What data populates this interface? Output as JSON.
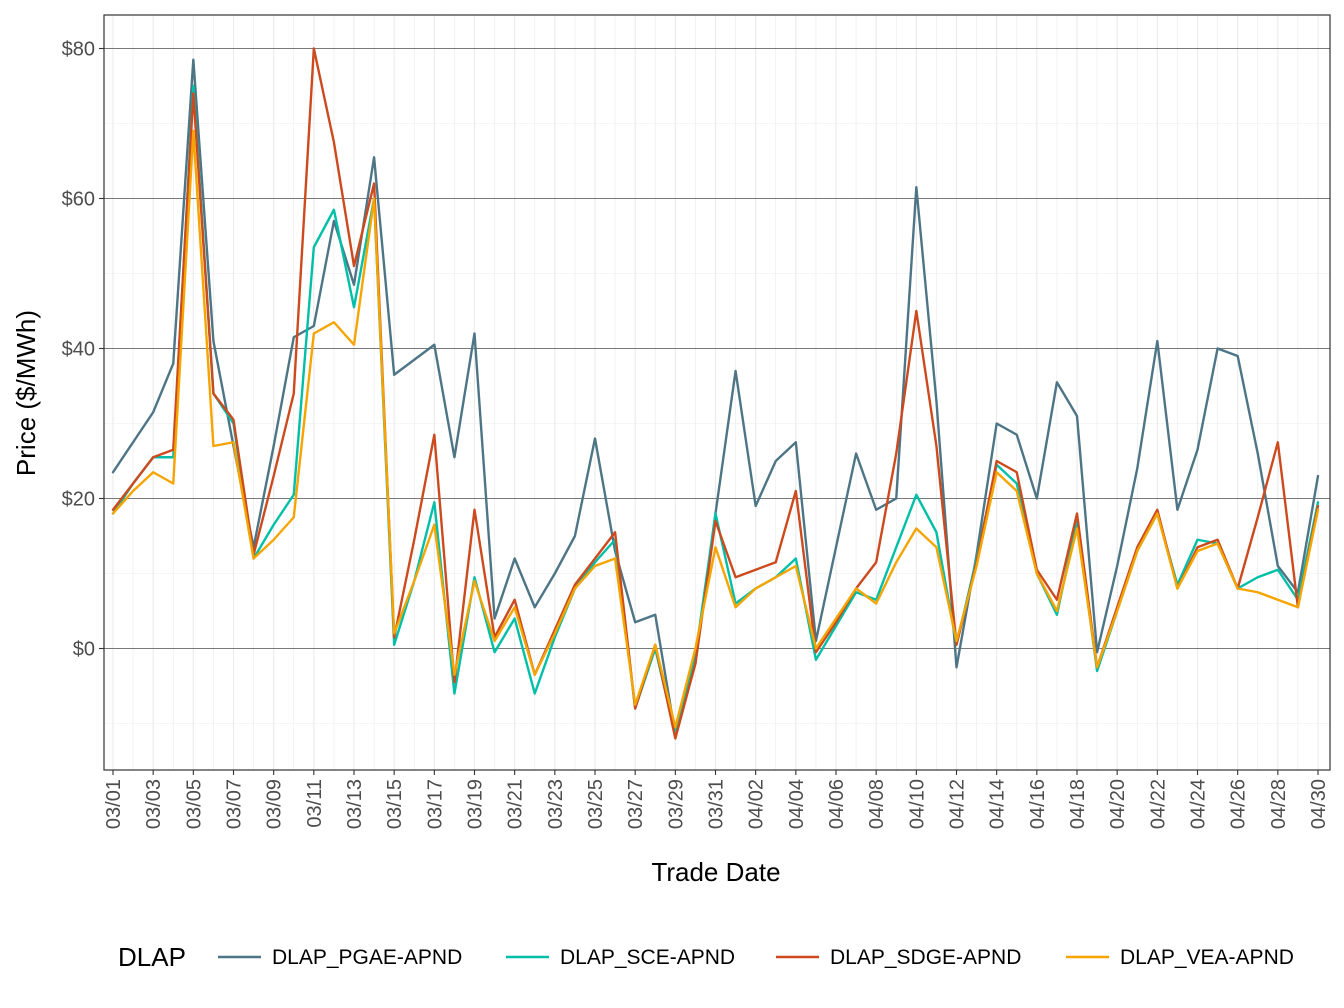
{
  "chart_data": {
    "type": "line",
    "xlabel": "Trade Date",
    "ylabel": "Price ($/MWh)",
    "ylim": [
      -15,
      84
    ],
    "y_ticks": [
      0,
      20,
      40,
      60,
      80
    ],
    "y_tick_labels": [
      "$0",
      "$20",
      "$40",
      "$60",
      "$80"
    ],
    "x_tick_labels": [
      "03/01",
      "03/03",
      "03/05",
      "03/07",
      "03/09",
      "03/11",
      "03/13",
      "03/15",
      "03/17",
      "03/19",
      "03/21",
      "03/23",
      "03/25",
      "03/27",
      "03/29",
      "03/31",
      "04/02",
      "04/04",
      "04/06",
      "04/08",
      "04/10",
      "04/12",
      "04/14",
      "04/16",
      "04/18",
      "04/20",
      "04/22",
      "04/24",
      "04/26",
      "04/28",
      "04/30"
    ],
    "grid": true,
    "legend_title": "DLAP",
    "legend_position": "bottom",
    "x": [
      "03/01",
      "03/02",
      "03/03",
      "03/04",
      "03/05",
      "03/06",
      "03/07",
      "03/08",
      "03/09",
      "03/10",
      "03/11",
      "03/12",
      "03/13",
      "03/14",
      "03/15",
      "03/16",
      "03/17",
      "03/18",
      "03/19",
      "03/20",
      "03/21",
      "03/22",
      "03/23",
      "03/24",
      "03/25",
      "03/26",
      "03/27",
      "03/28",
      "03/29",
      "03/30",
      "03/31",
      "04/01",
      "04/02",
      "04/03",
      "04/04",
      "04/05",
      "04/06",
      "04/07",
      "04/08",
      "04/09",
      "04/10",
      "04/11",
      "04/12",
      "04/13",
      "04/14",
      "04/15",
      "04/16",
      "04/17",
      "04/18",
      "04/19",
      "04/20",
      "04/21",
      "04/22",
      "04/23",
      "04/24",
      "04/25",
      "04/26",
      "04/27",
      "04/28",
      "04/29",
      "04/30"
    ],
    "series": [
      {
        "name": "DLAP_PGAE-APND",
        "color": "#4d7585",
        "values": [
          23.5,
          27.5,
          31.5,
          38,
          78.5,
          41,
          27,
          13.5,
          27,
          41.5,
          43,
          57,
          48.5,
          65.5,
          36.5,
          38.5,
          40.5,
          25.5,
          42,
          4,
          12,
          5.5,
          10,
          15,
          28,
          13,
          3.5,
          4.5,
          -11.5,
          -2,
          18,
          37,
          19,
          25,
          27.5,
          1,
          13.5,
          26,
          18.5,
          20,
          61.5,
          33,
          -2.5,
          12.5,
          30,
          28.5,
          20,
          35.5,
          31,
          -0.5,
          11,
          24,
          41,
          18.5,
          26.5,
          40,
          39,
          26,
          11,
          7.5,
          23
        ]
      },
      {
        "name": "DLAP_SCE-APND",
        "color": "#00bfa8",
        "values": [
          18,
          22,
          25.5,
          25.5,
          75,
          34,
          30,
          12,
          16.5,
          20.5,
          53.5,
          58.5,
          45.5,
          60,
          0.5,
          9,
          19.5,
          -6,
          9.5,
          -0.5,
          4,
          -6,
          1.5,
          8,
          11.5,
          14.5,
          -8,
          0,
          -11.5,
          -1,
          18,
          6,
          8,
          9.5,
          12,
          -1.5,
          3,
          7.5,
          6.5,
          13.5,
          20.5,
          15.5,
          0.5,
          12,
          24.5,
          22,
          10,
          4.5,
          17,
          -3,
          5,
          13,
          18,
          8.5,
          14.5,
          14,
          8,
          9.5,
          10.5,
          6.5,
          19.5
        ]
      },
      {
        "name": "DLAP_SDGE-APND",
        "color": "#cc4a1e",
        "values": [
          18.5,
          22,
          25.5,
          26.5,
          74,
          34,
          30.5,
          12.5,
          23,
          34,
          80,
          67.5,
          51,
          62,
          1.5,
          14.5,
          28.5,
          -4.5,
          18.5,
          1.5,
          6.5,
          -3.5,
          2.5,
          8.5,
          12,
          15.5,
          -8,
          0.5,
          -12,
          -2,
          17,
          9.5,
          10.5,
          11.5,
          21,
          -0.5,
          3.5,
          8,
          11.5,
          26,
          45,
          27,
          0.5,
          11.5,
          25,
          23.5,
          10.5,
          6.5,
          18,
          -2.5,
          5.5,
          13.5,
          18.5,
          8,
          13.5,
          14.5,
          8,
          17.5,
          27.5,
          5.5,
          19
        ]
      },
      {
        "name": "DLAP_VEA-APND",
        "color": "#f5a400",
        "values": [
          18,
          21,
          23.5,
          22,
          69,
          27,
          27.5,
          12,
          14.5,
          17.5,
          42,
          43.5,
          40.5,
          60,
          2,
          9,
          16.5,
          -3.5,
          9,
          1,
          5.5,
          -3.5,
          2,
          8,
          11,
          12,
          -7.5,
          0.5,
          -10.5,
          0,
          13.5,
          5.5,
          8,
          9.5,
          11,
          0,
          4,
          8,
          6,
          11.5,
          16,
          13.5,
          1,
          11,
          23.5,
          21,
          10,
          5,
          16,
          -2.5,
          5,
          13,
          18,
          8,
          13,
          14,
          8,
          7.5,
          6.5,
          5.5,
          18.5
        ]
      }
    ]
  }
}
